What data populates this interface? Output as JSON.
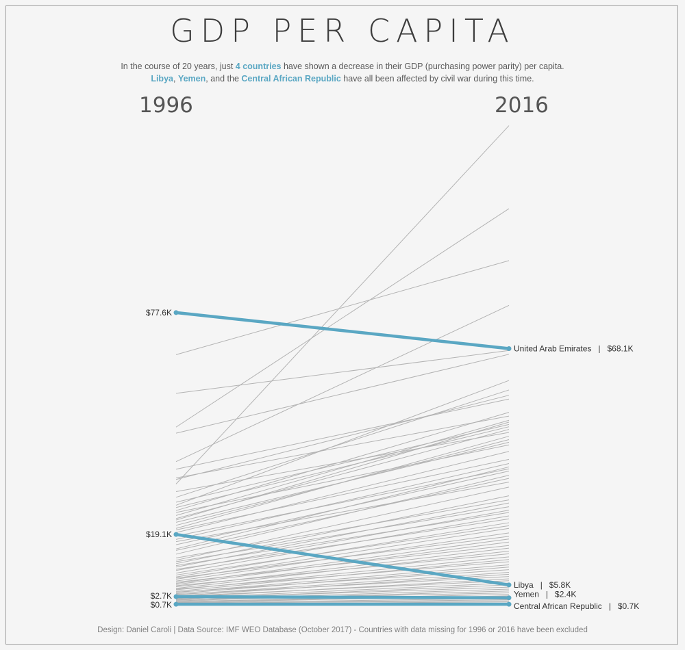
{
  "title": "GDP PER CAPITA",
  "subtitle": {
    "l1_a": "In the course of 20 years, just ",
    "l1_b": "4 countries",
    "l1_c": " have shown a decrease in their GDP (purchasing power parity) per capita.",
    "l2_a": "Libya",
    "l2_b": ", ",
    "l2_c": "Yemen",
    "l2_d": ", and the ",
    "l2_e": "Central African Republic",
    "l2_f": " have all been affected by civil war during this time."
  },
  "footer": "Design: Daniel Caroli  |  Data Source: IMF WEO Database (October 2017) - Countries with data missing for 1996 or 2016 have been excluded",
  "colors": {
    "highlight": "#5aa7c3",
    "grey": "#b3b3b3"
  },
  "chart_data": {
    "type": "line",
    "subtype": "slope",
    "x": [
      "1996",
      "2016"
    ],
    "yunit": "$K",
    "ylim": [
      0,
      127
    ],
    "highlight": [
      {
        "name": "United Arab Emirates",
        "values": [
          77.6,
          68.1
        ],
        "label_1996": "$77.6K",
        "label_2016": "United Arab Emirates   |   $68.1K"
      },
      {
        "name": "Libya",
        "values": [
          19.1,
          5.8
        ],
        "label_1996": "$19.1K",
        "label_2016": "Libya   |   $5.8K"
      },
      {
        "name": "Yemen",
        "values": [
          2.7,
          2.4
        ],
        "label_1996": "$2.7K",
        "label_2016": "Yemen   |   $2.4K"
      },
      {
        "name": "Central African Republic",
        "values": [
          0.7,
          0.7
        ],
        "label_1996": "$0.7K",
        "label_2016": "Central African Republic   |   $0.7K"
      }
    ],
    "others": [
      [
        32.4,
        126.9
      ],
      [
        47.4,
        105.0
      ],
      [
        66.5,
        91.3
      ],
      [
        38.3,
        79.5
      ],
      [
        56.3,
        67.6
      ],
      [
        45.8,
        66.6
      ],
      [
        26.8,
        59.7
      ],
      [
        28.9,
        57.2
      ],
      [
        33.6,
        55.8
      ],
      [
        36.3,
        54.8
      ],
      [
        25.4,
        51.3
      ],
      [
        34.0,
        50.3
      ],
      [
        24.1,
        49.2
      ],
      [
        22.9,
        48.7
      ],
      [
        27.6,
        48.1
      ],
      [
        26.2,
        47.5
      ],
      [
        23.3,
        46.8
      ],
      [
        30.4,
        46.0
      ],
      [
        20.7,
        45.0
      ],
      [
        21.5,
        44.1
      ],
      [
        22.3,
        43.4
      ],
      [
        24.9,
        42.7
      ],
      [
        19.6,
        41.0
      ],
      [
        20.3,
        38.9
      ],
      [
        17.8,
        37.8
      ],
      [
        15.3,
        36.9
      ],
      [
        18.7,
        36.4
      ],
      [
        16.4,
        35.8
      ],
      [
        13.9,
        34.7
      ],
      [
        14.9,
        33.9
      ],
      [
        17.2,
        32.9
      ],
      [
        12.3,
        31.6
      ],
      [
        11.4,
        29.3
      ],
      [
        12.9,
        28.2
      ],
      [
        10.5,
        27.4
      ],
      [
        11.9,
        26.4
      ],
      [
        9.6,
        25.5
      ],
      [
        10.9,
        24.9
      ],
      [
        8.9,
        24.0
      ],
      [
        9.9,
        23.2
      ],
      [
        7.9,
        22.2
      ],
      [
        8.4,
        21.4
      ],
      [
        7.3,
        20.7
      ],
      [
        6.8,
        19.5
      ],
      [
        7.6,
        18.6
      ],
      [
        6.2,
        17.9
      ],
      [
        5.9,
        17.1
      ],
      [
        6.5,
        16.2
      ],
      [
        5.3,
        15.5
      ],
      [
        4.9,
        14.7
      ],
      [
        5.6,
        14.0
      ],
      [
        4.5,
        13.2
      ],
      [
        4.1,
        12.5
      ],
      [
        4.7,
        11.9
      ],
      [
        3.8,
        11.1
      ],
      [
        3.5,
        10.5
      ],
      [
        3.9,
        9.8
      ],
      [
        3.2,
        9.1
      ],
      [
        2.9,
        8.6
      ],
      [
        3.3,
        8.0
      ],
      [
        2.5,
        7.4
      ],
      [
        2.8,
        6.9
      ],
      [
        2.3,
        6.3
      ],
      [
        2.0,
        5.8
      ],
      [
        2.2,
        5.2
      ],
      [
        1.8,
        4.7
      ],
      [
        1.6,
        4.2
      ],
      [
        1.9,
        3.7
      ],
      [
        1.4,
        3.3
      ],
      [
        1.2,
        2.9
      ],
      [
        1.5,
        2.6
      ],
      [
        1.1,
        2.2
      ],
      [
        0.9,
        1.9
      ],
      [
        1.0,
        1.6
      ],
      [
        0.8,
        1.3
      ]
    ]
  }
}
